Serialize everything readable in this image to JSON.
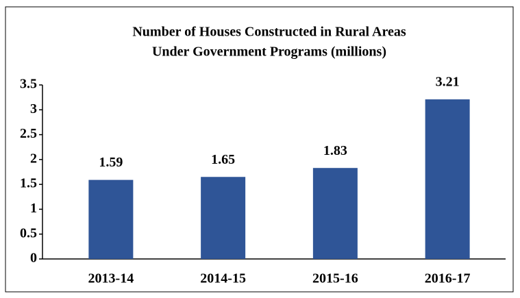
{
  "chart_data": {
    "type": "bar",
    "title": [
      "Number of Houses Constructed in Rural Areas",
      "Under Government Programs (millions)"
    ],
    "categories": [
      "2013-14",
      "2014-15",
      "2015-16",
      "2016-17"
    ],
    "values": [
      1.59,
      1.65,
      1.83,
      3.21
    ],
    "color": "#2f5597",
    "ylim": [
      0,
      3.5
    ],
    "yticks": [
      0,
      0.5,
      1,
      1.5,
      2,
      2.5,
      3,
      3.5
    ],
    "grid": false,
    "data_labels": true
  }
}
